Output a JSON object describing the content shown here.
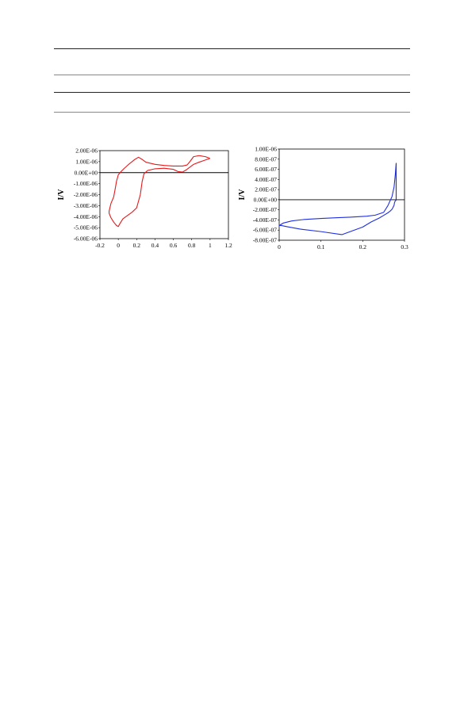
{
  "colors": {
    "left_series": "#e41a1c",
    "right_series": "#1f2fe0"
  },
  "chart_data": [
    {
      "type": "line",
      "ylabel": "I/V",
      "xlim": [
        -0.2,
        1.2
      ],
      "ylim": [
        -6e-06,
        2e-06
      ],
      "x_ticks": [
        "-0.2",
        "0",
        "0.2",
        "0.4",
        "0.6",
        "0.8",
        "1",
        "1.2"
      ],
      "x_tick_values": [
        -0.2,
        0,
        0.2,
        0.4,
        0.6,
        0.8,
        1.0,
        1.2
      ],
      "y_ticks": [
        "2.00E-06",
        "1.00E-06",
        "0.00E+00",
        "-1.00E-06",
        "-2.00E-06",
        "-3.00E-06",
        "-4.00E-06",
        "-5.00E-06",
        "-6.00E-06"
      ],
      "y_tick_values": [
        2e-06,
        1e-06,
        0,
        -1e-06,
        -2e-06,
        -3e-06,
        -4e-06,
        -5e-06,
        -6e-06
      ],
      "zero_line": true,
      "series": [
        {
          "color": "#e41a1c",
          "x": [
            1.0,
            0.95,
            0.88,
            0.82,
            0.78,
            0.75,
            0.7,
            0.6,
            0.5,
            0.4,
            0.3,
            0.26,
            0.22,
            0.18,
            0.12,
            0.06,
            0.03,
            0.02,
            0.0,
            -0.02,
            -0.03,
            -0.05,
            -0.08,
            -0.1,
            -0.1,
            -0.08,
            -0.05,
            -0.02,
            0.0,
            0.02,
            0.05,
            0.1,
            0.15,
            0.2,
            0.24,
            0.26,
            0.28,
            0.32,
            0.4,
            0.5,
            0.6,
            0.65,
            0.7,
            0.74,
            0.78,
            0.82,
            0.88,
            0.95,
            1.0
          ],
          "y": [
            1.3e-06,
            1.45e-06,
            1.55e-06,
            1.45e-06,
            1e-06,
            7e-07,
            6e-07,
            6e-07,
            6.5e-07,
            7.5e-07,
            9.5e-07,
            1.2e-06,
            1.4e-06,
            1.2e-06,
            8e-07,
            3.5e-07,
            1e-07,
            0.0,
            -2e-07,
            -8e-07,
            -1.3e-06,
            -2.2e-06,
            -2.8e-06,
            -3.5e-06,
            -3.7e-06,
            -4.1e-06,
            -4.5e-06,
            -4.8e-06,
            -4.9e-06,
            -4.6e-06,
            -4.2e-06,
            -3.9e-06,
            -3.6e-06,
            -3.2e-06,
            -2e-06,
            -8e-07,
            -1e-07,
            2e-07,
            3.5e-07,
            4e-07,
            3e-07,
            1e-07,
            5e-08,
            2.5e-07,
            5e-07,
            7.5e-07,
            9.5e-07,
            1.15e-06,
            1.3e-06
          ]
        }
      ]
    },
    {
      "type": "line",
      "ylabel": "I/V",
      "xlim": [
        0,
        0.3
      ],
      "ylim": [
        -8e-07,
        1e-06
      ],
      "x_ticks": [
        "0",
        "0.1",
        "0.2",
        "0.3"
      ],
      "x_tick_values": [
        0,
        0.1,
        0.2,
        0.3
      ],
      "y_ticks": [
        "1.00E-06",
        "8.00E-07",
        "6.00E-07",
        "4.00E-07",
        "2.00E-07",
        "0.00E+00",
        "-2.00E-07",
        "-4.00E-07",
        "-6.00E-07",
        "-8.00E-07"
      ],
      "y_tick_values": [
        1e-06,
        8e-07,
        6e-07,
        4e-07,
        2e-07,
        0,
        -2e-07,
        -4e-07,
        -6e-07,
        -8e-07
      ],
      "zero_line": true,
      "series": [
        {
          "color": "#1f2fe0",
          "x": [
            0.0,
            0.01,
            0.03,
            0.06,
            0.1,
            0.14,
            0.17,
            0.19,
            0.21,
            0.23,
            0.25,
            0.26,
            0.27,
            0.275,
            0.278,
            0.28,
            0.28,
            0.278,
            0.276,
            0.275,
            0.272,
            0.27,
            0.265,
            0.26,
            0.25,
            0.24,
            0.22,
            0.2,
            0.15,
            0.1,
            0.05,
            0.02,
            0.005,
            0.0
          ],
          "y": [
            -5.1e-07,
            -4.6e-07,
            -4.2e-07,
            -3.9e-07,
            -3.7e-07,
            -3.55e-07,
            -3.45e-07,
            -3.35e-07,
            -3.25e-07,
            -3.05e-07,
            -2.5e-07,
            -1.2e-07,
            6e-08,
            2.5e-07,
            5e-07,
            7.2e-07,
            -1e-08,
            -2e-08,
            -6e-08,
            -1.1e-07,
            -1.6e-07,
            -1.9e-07,
            -2.3e-07,
            -2.6e-07,
            -3.1e-07,
            -3.6e-07,
            -4.4e-07,
            -5.4e-07,
            -6.9e-07,
            -6.3e-07,
            -5.8e-07,
            -5.35e-07,
            -5.1e-07,
            -5.1e-07
          ]
        }
      ]
    }
  ]
}
